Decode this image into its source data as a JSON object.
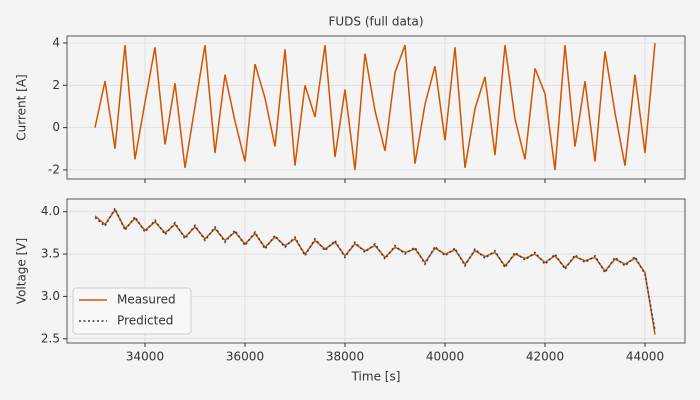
{
  "chart_data": [
    {
      "type": "line",
      "title": "FUDS (full data)",
      "y_label": "Current [A]",
      "color": "#d35400",
      "grid": true,
      "x": [
        33000,
        33200,
        33400,
        33600,
        33800,
        34000,
        34200,
        34400,
        34600,
        34800,
        35000,
        35200,
        35400,
        35600,
        35800,
        36000,
        36200,
        36400,
        36600,
        36800,
        37000,
        37200,
        37400,
        37600,
        37800,
        38000,
        38200,
        38400,
        38600,
        38800,
        39000,
        39200,
        39400,
        39600,
        39800,
        40000,
        40200,
        40400,
        40600,
        40800,
        41000,
        41200,
        41400,
        41600,
        41800,
        42000,
        42200,
        42400,
        42600,
        42800,
        43000,
        43200,
        43400,
        43600,
        43800,
        44000,
        44200
      ],
      "values": [
        0,
        2.2,
        -1.0,
        3.9,
        -1.5,
        1.2,
        3.8,
        -0.8,
        2.1,
        -1.9,
        1.0,
        3.9,
        -1.2,
        2.5,
        0.3,
        -1.6,
        3.0,
        1.4,
        -0.9,
        3.7,
        -1.8,
        2.0,
        0.5,
        3.9,
        -1.4,
        1.8,
        -2.0,
        3.5,
        0.8,
        -1.1,
        2.6,
        3.9,
        -1.7,
        1.1,
        2.9,
        -0.6,
        3.8,
        -1.9,
        0.9,
        2.4,
        -1.3,
        3.9,
        0.4,
        -1.5,
        2.8,
        1.6,
        -2.0,
        3.9,
        -0.9,
        2.2,
        -1.6,
        3.6,
        0.7,
        -1.8,
        2.5,
        -1.2,
        4.0
      ],
      "xlim": [
        32440,
        44800
      ],
      "ylim": [
        -2.43,
        4.33
      ],
      "xticks": [
        34000,
        36000,
        38000,
        40000,
        42000,
        44000
      ],
      "yticks": [
        -2,
        0,
        2,
        4
      ]
    },
    {
      "type": "line",
      "x_label": "Time [s]",
      "y_label": "Voltage [V]",
      "grid": true,
      "legend": "lower left",
      "x": [
        33000,
        33200,
        33400,
        33600,
        33800,
        34000,
        34200,
        34400,
        34600,
        34800,
        35000,
        35200,
        35400,
        35600,
        35800,
        36000,
        36200,
        36400,
        36600,
        36800,
        37000,
        37200,
        37400,
        37600,
        37800,
        38000,
        38200,
        38400,
        38600,
        38800,
        39000,
        39200,
        39400,
        39600,
        39800,
        40000,
        40200,
        40400,
        40600,
        40800,
        41000,
        41200,
        41400,
        41600,
        41800,
        42000,
        42200,
        42400,
        42600,
        42800,
        43000,
        43200,
        43400,
        43600,
        43800,
        44000,
        44200
      ],
      "series": [
        {
          "name": "Measured",
          "color": "#d35400",
          "dash": "solid",
          "values": [
            3.95,
            3.85,
            4.02,
            3.8,
            3.92,
            3.78,
            3.88,
            3.75,
            3.85,
            3.7,
            3.82,
            3.68,
            3.8,
            3.66,
            3.76,
            3.62,
            3.74,
            3.58,
            3.7,
            3.6,
            3.68,
            3.5,
            3.66,
            3.56,
            3.64,
            3.48,
            3.62,
            3.54,
            3.6,
            3.46,
            3.58,
            3.52,
            3.56,
            3.4,
            3.57,
            3.5,
            3.55,
            3.38,
            3.54,
            3.47,
            3.52,
            3.36,
            3.5,
            3.45,
            3.5,
            3.4,
            3.48,
            3.34,
            3.47,
            3.42,
            3.46,
            3.3,
            3.44,
            3.38,
            3.45,
            3.28,
            2.55
          ]
        },
        {
          "name": "Predicted",
          "color": "#2c3e50",
          "dash": "dotted",
          "values": [
            3.93,
            3.83,
            4.04,
            3.78,
            3.94,
            3.76,
            3.9,
            3.73,
            3.87,
            3.68,
            3.84,
            3.66,
            3.82,
            3.64,
            3.78,
            3.6,
            3.76,
            3.56,
            3.72,
            3.58,
            3.7,
            3.48,
            3.68,
            3.54,
            3.66,
            3.46,
            3.64,
            3.52,
            3.62,
            3.44,
            3.6,
            3.5,
            3.58,
            3.38,
            3.59,
            3.48,
            3.57,
            3.36,
            3.56,
            3.45,
            3.54,
            3.34,
            3.52,
            3.43,
            3.52,
            3.38,
            3.5,
            3.32,
            3.49,
            3.4,
            3.48,
            3.28,
            3.46,
            3.36,
            3.47,
            3.26,
            2.6
          ]
        }
      ],
      "xlim": [
        32440,
        44800
      ],
      "ylim": [
        2.45,
        4.15
      ],
      "xticks": [
        34000,
        36000,
        38000,
        40000,
        42000,
        44000
      ],
      "yticks": [
        2.5,
        {
          "value": 3.0,
          "label": "3.0"
        },
        3.5,
        {
          "value": 4.0,
          "label": "4.0"
        }
      ]
    }
  ]
}
